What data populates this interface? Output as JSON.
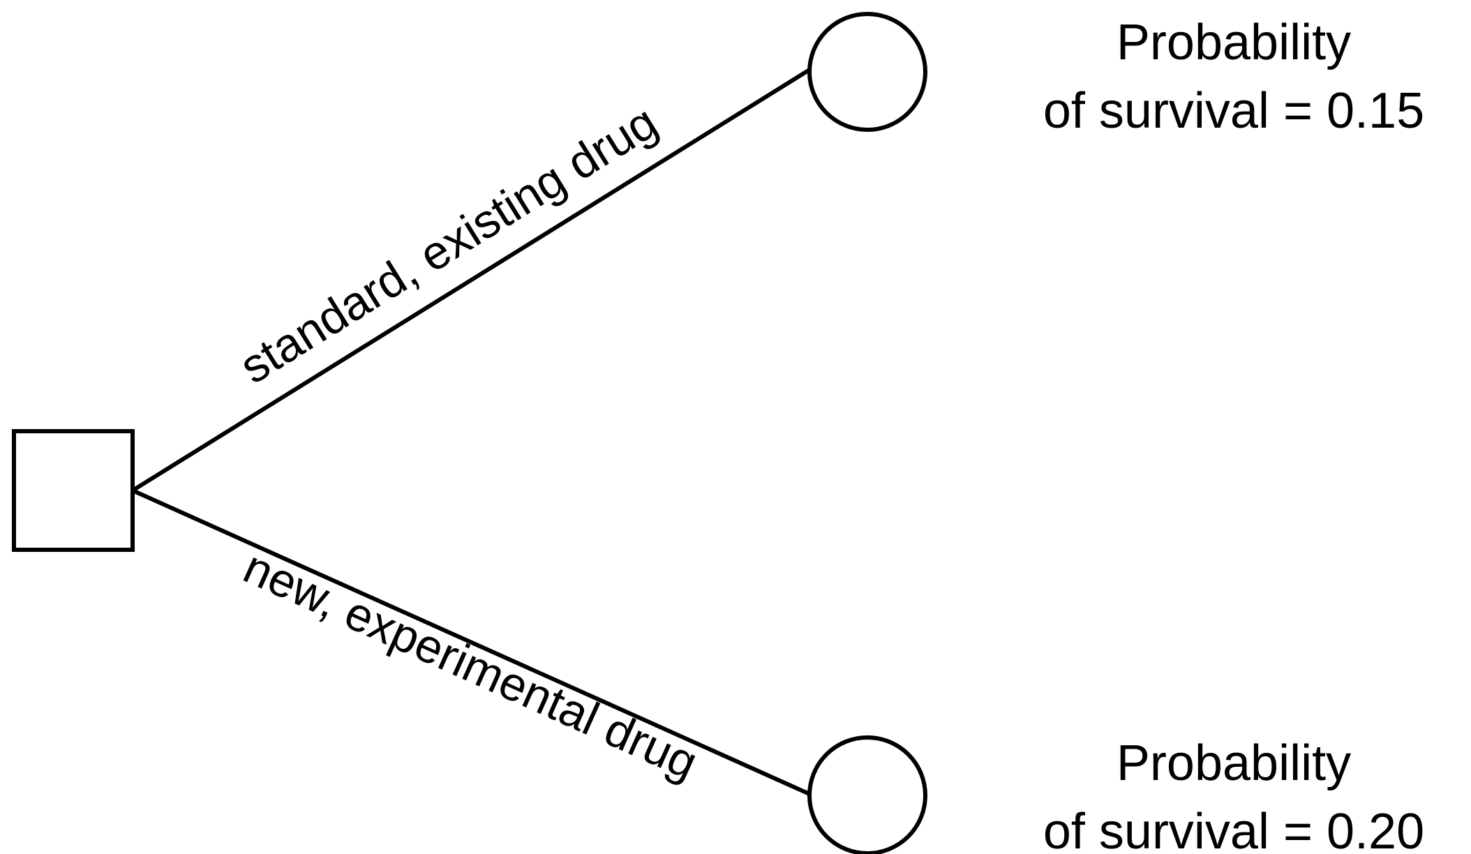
{
  "decision_tree": {
    "branches": [
      {
        "label": "standard, existing drug",
        "outcome": {
          "line1": "Probability",
          "line2": "of survival = 0.15"
        }
      },
      {
        "label": "new, experimental drug",
        "outcome": {
          "line1": "Probability",
          "line2": "of survival = 0.20"
        }
      }
    ]
  }
}
